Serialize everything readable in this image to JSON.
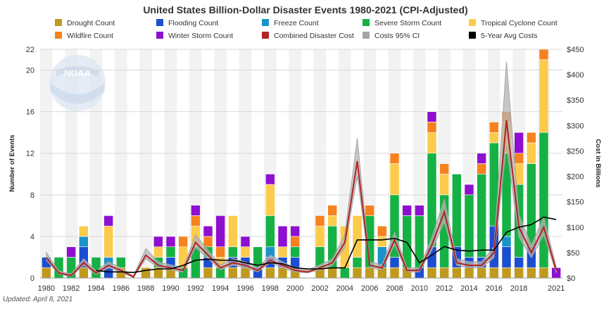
{
  "chart_data": {
    "type": "bar",
    "title": "United States Billion-Dollar Disaster Events 1980-2021 (CPI-Adjusted)",
    "xlabel": "",
    "ylabel": "Number of Events",
    "y2label": "Cost in Billions",
    "ylim": [
      0,
      22
    ],
    "y2lim": [
      0,
      450
    ],
    "yticks": [
      "0",
      "4",
      "8",
      "12",
      "16",
      "20",
      "22"
    ],
    "y2ticks": [
      "$0",
      "$50",
      "$100",
      "$150",
      "$200",
      "$250",
      "$300",
      "$350",
      "$400",
      "$450"
    ],
    "xticks": [
      "1980",
      "1982",
      "1984",
      "1986",
      "1988",
      "1990",
      "1992",
      "1994",
      "1996",
      "1998",
      "2000",
      "2002",
      "2004",
      "2006",
      "2008",
      "2010",
      "2012",
      "2014",
      "2016",
      "2018",
      "2021"
    ],
    "updated": "Updated: April 8, 2021",
    "logo_text": "NOAA",
    "categories": [
      1980,
      1981,
      1982,
      1983,
      1984,
      1985,
      1986,
      1987,
      1988,
      1989,
      1990,
      1991,
      1992,
      1993,
      1994,
      1995,
      1996,
      1997,
      1998,
      1999,
      2000,
      2001,
      2002,
      2003,
      2004,
      2005,
      2006,
      2007,
      2008,
      2009,
      2010,
      2011,
      2012,
      2013,
      2014,
      2015,
      2016,
      2017,
      2018,
      2019,
      2020,
      2021
    ],
    "series": [
      {
        "name": "Drought Count",
        "color": "#bf9a1e",
        "values": [
          1,
          0,
          0,
          1,
          0,
          0,
          1,
          0,
          1,
          1,
          1,
          0,
          0,
          1,
          0,
          1,
          1,
          0,
          1,
          1,
          1,
          0,
          1,
          1,
          0,
          1,
          1,
          1,
          1,
          1,
          0,
          1,
          1,
          1,
          1,
          1,
          1,
          1,
          1,
          1,
          1,
          0
        ]
      },
      {
        "name": "Flooding Count",
        "color": "#1c4ed1",
        "values": [
          1,
          0,
          0,
          2,
          0,
          1,
          0,
          0,
          0,
          0,
          1,
          0,
          0,
          1,
          0,
          1,
          1,
          1,
          1,
          1,
          1,
          0,
          0,
          0,
          0,
          0,
          0,
          0,
          1,
          0,
          1,
          2,
          0,
          2,
          1,
          1,
          4,
          2,
          1,
          2,
          0,
          0
        ]
      },
      {
        "name": "Freeze Count",
        "color": "#1b93c9",
        "values": [
          0,
          0,
          0,
          1,
          0,
          1,
          0,
          0,
          0,
          0,
          0,
          0,
          0,
          0,
          0,
          0,
          0,
          0,
          1,
          0,
          0,
          0,
          0,
          0,
          0,
          0,
          0,
          2,
          0,
          0,
          0,
          0,
          0,
          0,
          0,
          0,
          0,
          1,
          0,
          0,
          0,
          0
        ]
      },
      {
        "name": "Severe Storm Count",
        "color": "#16b144",
        "values": [
          0,
          2,
          2,
          0,
          2,
          0,
          1,
          0,
          0,
          1,
          1,
          1,
          3,
          1,
          1,
          1,
          0,
          2,
          3,
          0,
          1,
          0,
          2,
          4,
          1,
          1,
          5,
          0,
          6,
          5,
          5,
          9,
          7,
          7,
          6,
          8,
          8,
          8,
          7,
          8,
          13,
          0
        ]
      },
      {
        "name": "Tropical Cyclone Count",
        "color": "#fccb4c",
        "values": [
          0,
          0,
          0,
          1,
          0,
          3,
          0,
          0,
          0,
          1,
          0,
          2,
          2,
          0,
          1,
          3,
          1,
          0,
          3,
          1,
          0,
          0,
          2,
          1,
          4,
          4,
          0,
          1,
          3,
          0,
          0,
          2,
          2,
          0,
          0,
          0,
          1,
          3,
          2,
          2,
          7,
          0
        ]
      },
      {
        "name": "Wildfire Count",
        "color": "#f5821f",
        "values": [
          0,
          0,
          0,
          0,
          0,
          0,
          0,
          0,
          0,
          0,
          0,
          1,
          1,
          1,
          1,
          0,
          0,
          0,
          0,
          0,
          1,
          0,
          1,
          1,
          0,
          0,
          1,
          1,
          1,
          0,
          0,
          1,
          1,
          0,
          0,
          1,
          1,
          1,
          1,
          1,
          1,
          0
        ]
      },
      {
        "name": "Winter Storm Count",
        "color": "#8e0fd0",
        "values": [
          0,
          0,
          1,
          0,
          0,
          1,
          0,
          0,
          0,
          1,
          1,
          0,
          1,
          1,
          3,
          0,
          1,
          0,
          1,
          2,
          1,
          0,
          0,
          0,
          0,
          0,
          0,
          0,
          0,
          1,
          1,
          1,
          0,
          0,
          1,
          1,
          0,
          0,
          2,
          0,
          0,
          1
        ]
      },
      {
        "name": "Combined Disaster Cost",
        "color": "#b22222",
        "values": [
          40,
          10,
          5,
          30,
          10,
          25,
          15,
          2,
          45,
          25,
          20,
          15,
          70,
          45,
          20,
          30,
          25,
          15,
          35,
          25,
          15,
          12,
          20,
          30,
          70,
          230,
          25,
          20,
          75,
          15,
          15,
          65,
          130,
          30,
          25,
          25,
          50,
          310,
          100,
          50,
          100,
          15
        ]
      },
      {
        "name": "Costs 95% CI",
        "color": "#a5a5a5",
        "lower": [
          35,
          8,
          3,
          25,
          7,
          20,
          12,
          1,
          38,
          20,
          16,
          12,
          60,
          38,
          16,
          25,
          20,
          12,
          30,
          20,
          12,
          10,
          16,
          25,
          60,
          200,
          20,
          16,
          65,
          12,
          12,
          55,
          110,
          25,
          20,
          20,
          40,
          260,
          80,
          40,
          85,
          10
        ],
        "upper": [
          50,
          14,
          8,
          38,
          14,
          32,
          20,
          4,
          58,
          32,
          26,
          20,
          85,
          55,
          26,
          38,
          32,
          20,
          45,
          32,
          20,
          16,
          26,
          38,
          85,
          275,
          32,
          26,
          90,
          20,
          20,
          80,
          155,
          38,
          32,
          32,
          62,
          425,
          125,
          65,
          120,
          22
        ]
      },
      {
        "name": "5-Year Avg Costs",
        "color": "#000000",
        "values": [
          null,
          null,
          null,
          null,
          15,
          12,
          12,
          11,
          15,
          18,
          18,
          25,
          35,
          37,
          35,
          35,
          30,
          25,
          30,
          28,
          20,
          18,
          18,
          20,
          20,
          75,
          75,
          75,
          78,
          70,
          30,
          45,
          62,
          55,
          53,
          55,
          55,
          90,
          100,
          105,
          120,
          115
        ]
      }
    ]
  }
}
